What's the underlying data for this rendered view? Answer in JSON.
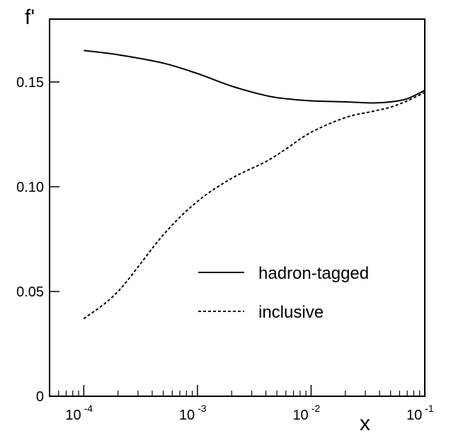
{
  "chart_data": {
    "type": "line",
    "title": "",
    "xlabel": "x",
    "ylabel": "f'",
    "xscale": "log",
    "xlim": [
      5e-05,
      0.1
    ],
    "ylim": [
      0,
      0.18
    ],
    "grid": false,
    "legend_position": "lower-right",
    "y_ticks": [
      {
        "value": 0,
        "label": "0"
      },
      {
        "value": 0.05,
        "label": "0.05"
      },
      {
        "value": 0.1,
        "label": "0.10"
      },
      {
        "value": 0.15,
        "label": "0.15"
      }
    ],
    "x_ticks": [
      {
        "value": 0.0001,
        "base": "10",
        "exponent": "-4"
      },
      {
        "value": 0.001,
        "base": "10",
        "exponent": "-3"
      },
      {
        "value": 0.01,
        "base": "10",
        "exponent": "-2"
      },
      {
        "value": 0.1,
        "base": "10",
        "exponent": "-1"
      }
    ],
    "series": [
      {
        "name": "hadron-tagged",
        "style": "solid",
        "color": "#000000",
        "x": [
          0.0001,
          0.0002,
          0.0005,
          0.001,
          0.002,
          0.004,
          0.006,
          0.01,
          0.02,
          0.035,
          0.05,
          0.07,
          0.1
        ],
        "y": [
          0.165,
          0.163,
          0.159,
          0.154,
          0.148,
          0.1435,
          0.142,
          0.141,
          0.1405,
          0.14,
          0.1405,
          0.142,
          0.146
        ]
      },
      {
        "name": "inclusive",
        "style": "dashed",
        "color": "#000000",
        "x": [
          0.0001,
          0.0002,
          0.0005,
          0.001,
          0.002,
          0.004,
          0.006,
          0.01,
          0.02,
          0.035,
          0.05,
          0.07,
          0.1
        ],
        "y": [
          0.037,
          0.05,
          0.077,
          0.093,
          0.104,
          0.112,
          0.118,
          0.126,
          0.133,
          0.136,
          0.138,
          0.141,
          0.145
        ]
      }
    ]
  }
}
